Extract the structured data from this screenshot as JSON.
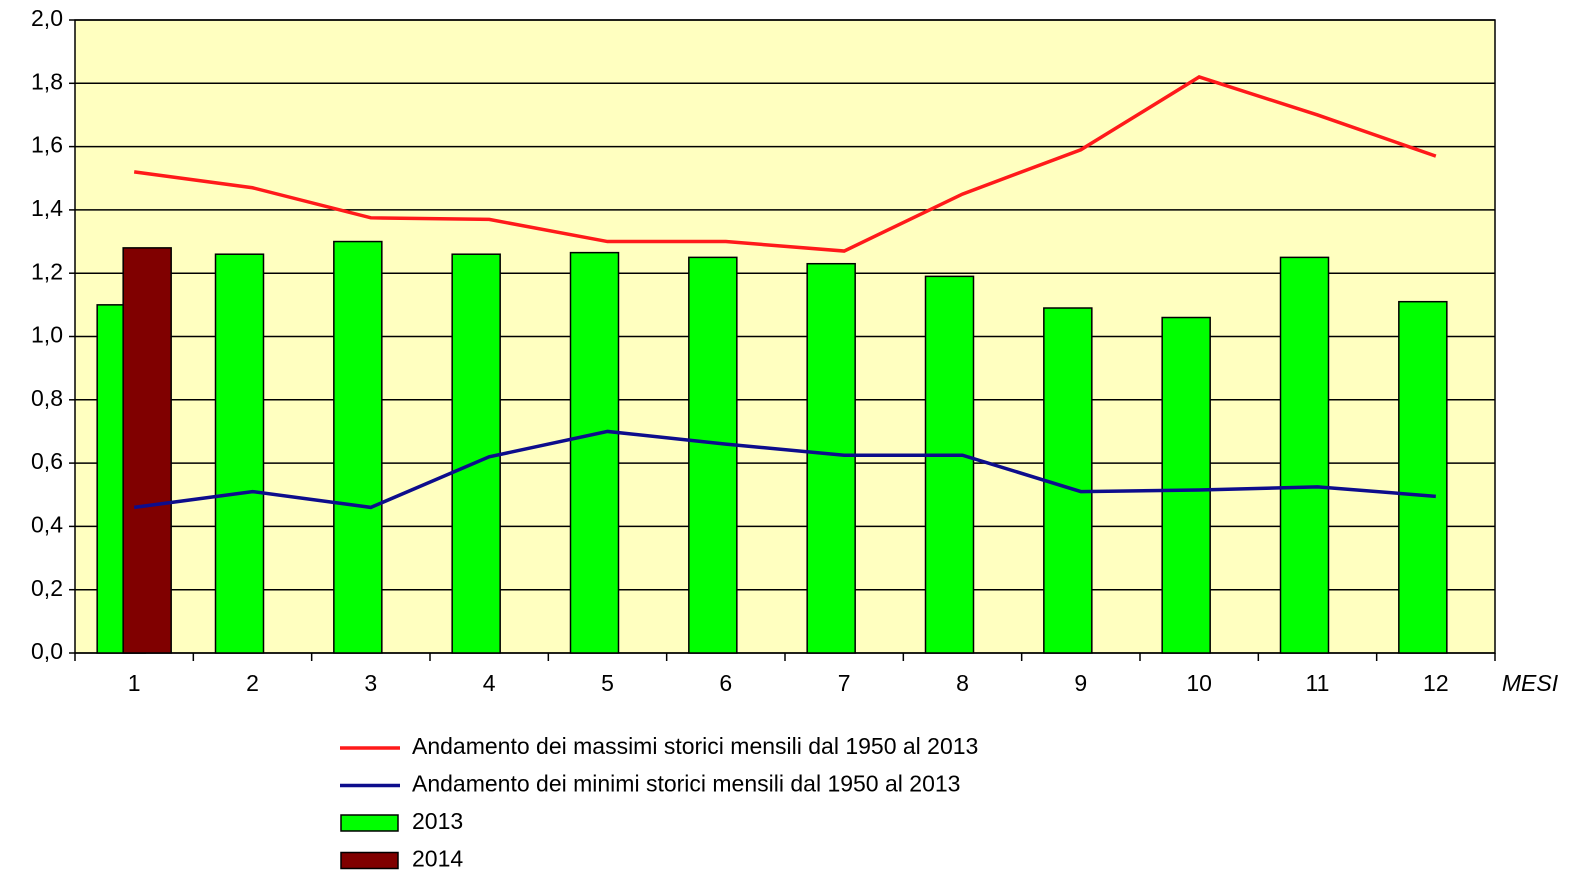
{
  "chart_data": {
    "type": "bar",
    "categories": [
      "1",
      "2",
      "3",
      "4",
      "5",
      "6",
      "7",
      "8",
      "9",
      "10",
      "11",
      "12"
    ],
    "x_label": "MESI",
    "series": [
      {
        "name": "Andamento dei massimi storici mensili dal 1950 al 2013",
        "type": "line",
        "color": "#ff1a1a",
        "values": [
          1.52,
          1.47,
          1.375,
          1.37,
          1.3,
          1.3,
          1.27,
          1.45,
          1.59,
          1.82,
          1.7,
          1.57
        ]
      },
      {
        "name": "Andamento dei minimi storici mensili dal 1950 al 2013",
        "type": "line",
        "color": "#0d0d8c",
        "values": [
          0.46,
          0.51,
          0.46,
          0.62,
          0.7,
          0.66,
          0.625,
          0.625,
          0.51,
          0.515,
          0.525,
          0.495
        ]
      },
      {
        "name": "2013",
        "type": "bar",
        "color": "#00ff00",
        "values": [
          1.1,
          1.26,
          1.3,
          1.26,
          1.265,
          1.25,
          1.23,
          1.19,
          1.09,
          1.06,
          1.25,
          1.11
        ]
      },
      {
        "name": "2014",
        "type": "bar",
        "color": "#800000",
        "values": [
          1.28,
          null,
          null,
          null,
          null,
          null,
          null,
          null,
          null,
          null,
          null,
          null
        ]
      }
    ],
    "ylim": [
      0,
      2
    ],
    "yticks": [
      {
        "value": 0,
        "label": "0,0"
      },
      {
        "value": 0.2,
        "label": "0,2"
      },
      {
        "value": 0.4,
        "label": "0,4"
      },
      {
        "value": 0.6,
        "label": "0,6"
      },
      {
        "value": 0.8,
        "label": "0,8"
      },
      {
        "value": 1,
        "label": "1,0"
      },
      {
        "value": 1.2,
        "label": "1,2"
      },
      {
        "value": 1.4,
        "label": "1,4"
      },
      {
        "value": 1.6,
        "label": "1,6"
      },
      {
        "value": 1.8,
        "label": "1,8"
      },
      {
        "value": 2,
        "label": "2,0"
      }
    ],
    "grid": true,
    "background": "#ffffc0",
    "legend": "bottom"
  }
}
